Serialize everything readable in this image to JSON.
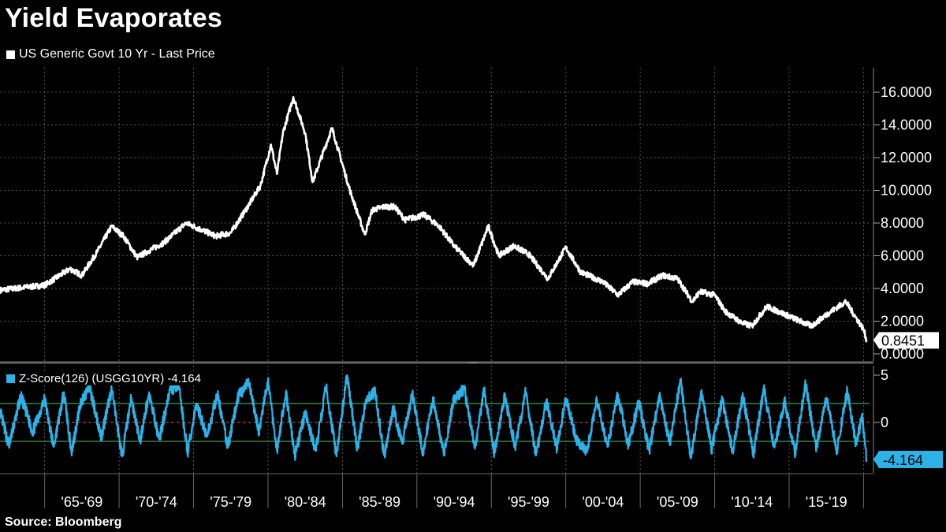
{
  "title": "Yield Evaporates",
  "source": "Source: Bloomberg",
  "colors": {
    "price_line": "#ffffff",
    "zscore_line": "#2db2e8",
    "band": "#52c45a",
    "zero": "#e05050",
    "grid": "#555555",
    "background": "#000000"
  },
  "chart_data": [
    {
      "type": "line",
      "legend": "US Generic Govt 10 Yr - Last Price",
      "ylim": [
        0,
        17
      ],
      "yticks": [
        "0.0000",
        "2.0000",
        "4.0000",
        "6.0000",
        "8.0000",
        "10.0000",
        "12.0000",
        "14.0000",
        "16.0000"
      ],
      "last_value_label": "0.8451",
      "x": [
        1962.0,
        1965.0,
        1966.7,
        1967.5,
        1968.5,
        1969.5,
        1970.3,
        1971.2,
        1972.0,
        1973.0,
        1974.5,
        1975.5,
        1976.5,
        1977.5,
        1978.5,
        1979.5,
        1980.2,
        1980.6,
        1981.0,
        1981.7,
        1982.5,
        1983.0,
        1983.5,
        1984.3,
        1985.5,
        1986.5,
        1987.0,
        1987.8,
        1988.5,
        1989.2,
        1990.5,
        1991.5,
        1992.5,
        1993.8,
        1994.8,
        1995.5,
        1996.5,
        1997.5,
        1998.8,
        2000.0,
        2001.0,
        2002.5,
        2003.5,
        2004.5,
        2005.5,
        2006.5,
        2007.5,
        2008.5,
        2009.0,
        2010.0,
        2010.7,
        2011.8,
        2012.5,
        2013.5,
        2014.5,
        2015.5,
        2016.5,
        2017.5,
        2018.8,
        2019.5,
        2020.0,
        2020.2
      ],
      "values": [
        3.9,
        4.2,
        5.2,
        4.8,
        6.2,
        7.8,
        7.2,
        5.9,
        6.3,
        6.8,
        8.0,
        7.6,
        7.2,
        7.4,
        8.8,
        10.3,
        12.8,
        11.0,
        13.5,
        15.7,
        13.5,
        10.5,
        11.8,
        13.8,
        10.0,
        7.3,
        8.8,
        9.0,
        9.0,
        8.2,
        8.5,
        7.8,
        6.6,
        5.4,
        7.8,
        6.0,
        6.6,
        6.1,
        4.6,
        6.5,
        5.0,
        4.4,
        3.6,
        4.4,
        4.3,
        4.8,
        4.6,
        3.2,
        3.8,
        3.6,
        2.6,
        1.9,
        1.7,
        2.9,
        2.5,
        2.1,
        1.7,
        2.4,
        3.2,
        2.2,
        1.5,
        0.85
      ],
      "xlabels": [
        "'65-'69",
        "'70-'74",
        "'75-'79",
        "'80-'84",
        "'85-'89",
        "'90-'94",
        "'95-'99",
        "'00-'04",
        "'05-'09",
        "'10-'14",
        "'15-'19"
      ]
    },
    {
      "type": "line",
      "legend": "Z-Score(126) (USGG10YR) -4.164",
      "ylim": [
        -5,
        6
      ],
      "yticks": [
        "5",
        "0"
      ],
      "band": [
        -2,
        2
      ],
      "last_value_label": "-4.164",
      "x": [
        1962.0,
        1962.6,
        1963.4,
        1964.2,
        1965.0,
        1965.6,
        1966.3,
        1966.8,
        1967.4,
        1968.0,
        1968.8,
        1969.5,
        1970.2,
        1970.8,
        1971.4,
        1972.0,
        1972.7,
        1973.4,
        1974.0,
        1974.6,
        1975.2,
        1975.9,
        1976.6,
        1977.3,
        1978.0,
        1978.7,
        1979.4,
        1980.0,
        1980.6,
        1981.2,
        1981.8,
        1982.5,
        1983.2,
        1983.9,
        1984.6,
        1985.3,
        1986.0,
        1986.6,
        1987.2,
        1987.8,
        1988.4,
        1989.0,
        1989.7,
        1990.4,
        1991.1,
        1991.8,
        1992.5,
        1993.2,
        1993.9,
        1994.5,
        1995.2,
        1995.9,
        1996.6,
        1997.3,
        1998.0,
        1998.7,
        1999.4,
        2000.0,
        2000.7,
        2001.4,
        2002.1,
        2002.8,
        2003.5,
        2004.2,
        2004.9,
        2005.6,
        2006.3,
        2007.0,
        2007.7,
        2008.4,
        2009.1,
        2009.8,
        2010.5,
        2011.2,
        2011.9,
        2012.6,
        2013.3,
        2014.0,
        2014.7,
        2015.4,
        2016.1,
        2016.8,
        2017.5,
        2018.2,
        2018.9,
        2019.5,
        2019.9,
        2020.2
      ],
      "values": [
        1.2,
        -2.5,
        2.8,
        -1.0,
        2.5,
        -2.6,
        3.2,
        -3.2,
        2.0,
        3.8,
        -1.5,
        3.5,
        -3.6,
        2.6,
        -2.0,
        3.0,
        -1.8,
        3.4,
        4.0,
        -3.2,
        2.0,
        -1.5,
        3.0,
        -2.6,
        2.8,
        4.2,
        -1.0,
        4.5,
        -3.0,
        3.2,
        -3.5,
        1.0,
        -3.0,
        3.8,
        -3.6,
        5.0,
        -2.8,
        2.5,
        3.2,
        -3.5,
        1.5,
        -2.2,
        3.0,
        -3.2,
        2.5,
        -3.4,
        2.6,
        3.5,
        -2.8,
        3.4,
        -3.2,
        2.8,
        -2.6,
        3.2,
        -3.5,
        2.4,
        -2.8,
        2.6,
        -1.8,
        -3.2,
        2.4,
        -2.6,
        3.0,
        -2.4,
        2.2,
        -3.0,
        2.8,
        -2.2,
        4.5,
        -3.8,
        3.2,
        -2.8,
        2.4,
        -3.0,
        2.8,
        -3.4,
        3.6,
        -2.6,
        2.2,
        -3.2,
        4.2,
        -2.8,
        2.6,
        -3.0,
        3.4,
        -2.4,
        0.8,
        -4.164
      ]
    }
  ]
}
